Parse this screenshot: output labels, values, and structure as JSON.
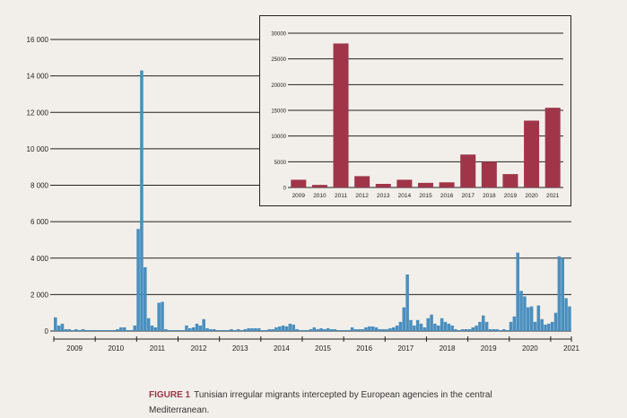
{
  "colors": {
    "main_bar": "#4a8fbe",
    "inset_bar": "#a0354a",
    "grid": "#222222",
    "background": "#f2efea",
    "caption_accent": "#a0354a"
  },
  "caption": {
    "figure_label": "FIGURE 1",
    "text": "Tunisian irregular migrants intercepted by European agencies in the central Mediterranean."
  },
  "chart_data": [
    {
      "type": "bar",
      "title": "",
      "xlabel": "",
      "ylabel": "",
      "ylim": [
        0,
        16000
      ],
      "y_ticks": [
        0,
        2000,
        4000,
        6000,
        8000,
        10000,
        12000,
        14000,
        16000
      ],
      "y_tick_labels": [
        "0",
        "2 000",
        "4 000",
        "6 000",
        "8 000",
        "10 000",
        "12 000",
        "14 000",
        "16 000"
      ],
      "x_tick_labels": [
        "2009",
        "2010",
        "2011",
        "2012",
        "2013",
        "2014",
        "2015",
        "2016",
        "2017",
        "2018",
        "2019",
        "2020",
        "2021"
      ],
      "grid": true,
      "granularity": "monthly",
      "start": "2009-01",
      "values": [
        750,
        300,
        400,
        100,
        100,
        50,
        100,
        50,
        100,
        50,
        50,
        50,
        50,
        50,
        50,
        50,
        50,
        50,
        100,
        200,
        200,
        50,
        50,
        300,
        5600,
        14300,
        3500,
        700,
        300,
        200,
        1550,
        1600,
        100,
        50,
        50,
        50,
        50,
        50,
        300,
        150,
        200,
        400,
        300,
        650,
        150,
        100,
        100,
        50,
        50,
        50,
        50,
        100,
        50,
        100,
        50,
        100,
        150,
        150,
        150,
        150,
        50,
        50,
        100,
        100,
        200,
        250,
        300,
        250,
        400,
        350,
        100,
        50,
        50,
        50,
        100,
        200,
        100,
        150,
        100,
        150,
        100,
        100,
        50,
        50,
        50,
        50,
        200,
        100,
        100,
        100,
        200,
        250,
        250,
        200,
        100,
        100,
        100,
        150,
        200,
        300,
        500,
        1300,
        3100,
        600,
        300,
        600,
        400,
        200,
        700,
        900,
        400,
        300,
        700,
        500,
        400,
        300,
        100,
        50,
        100,
        100,
        100,
        200,
        300,
        500,
        850,
        500,
        100,
        100,
        100,
        50,
        100,
        50,
        500,
        800,
        4300,
        2200,
        1900,
        1300,
        1350,
        500,
        1400,
        650,
        350,
        400,
        500,
        1000,
        4100,
        4000,
        1800,
        1350
      ]
    },
    {
      "type": "bar",
      "title": "",
      "xlabel": "",
      "ylabel": "",
      "ylim": [
        0,
        30000
      ],
      "y_ticks": [
        0,
        5000,
        10000,
        15000,
        20000,
        25000,
        30000
      ],
      "y_tick_labels": [
        "0",
        "5000",
        "10000",
        "15000",
        "20000",
        "25000",
        "30000"
      ],
      "grid": true,
      "categories": [
        "2009",
        "2010",
        "2011",
        "2012",
        "2013",
        "2014",
        "2015",
        "2016",
        "2017",
        "2018",
        "2019",
        "2020",
        "2021"
      ],
      "values": [
        1500,
        500,
        28000,
        2200,
        700,
        1500,
        900,
        1000,
        6400,
        5000,
        2600,
        13000,
        15500
      ]
    }
  ]
}
